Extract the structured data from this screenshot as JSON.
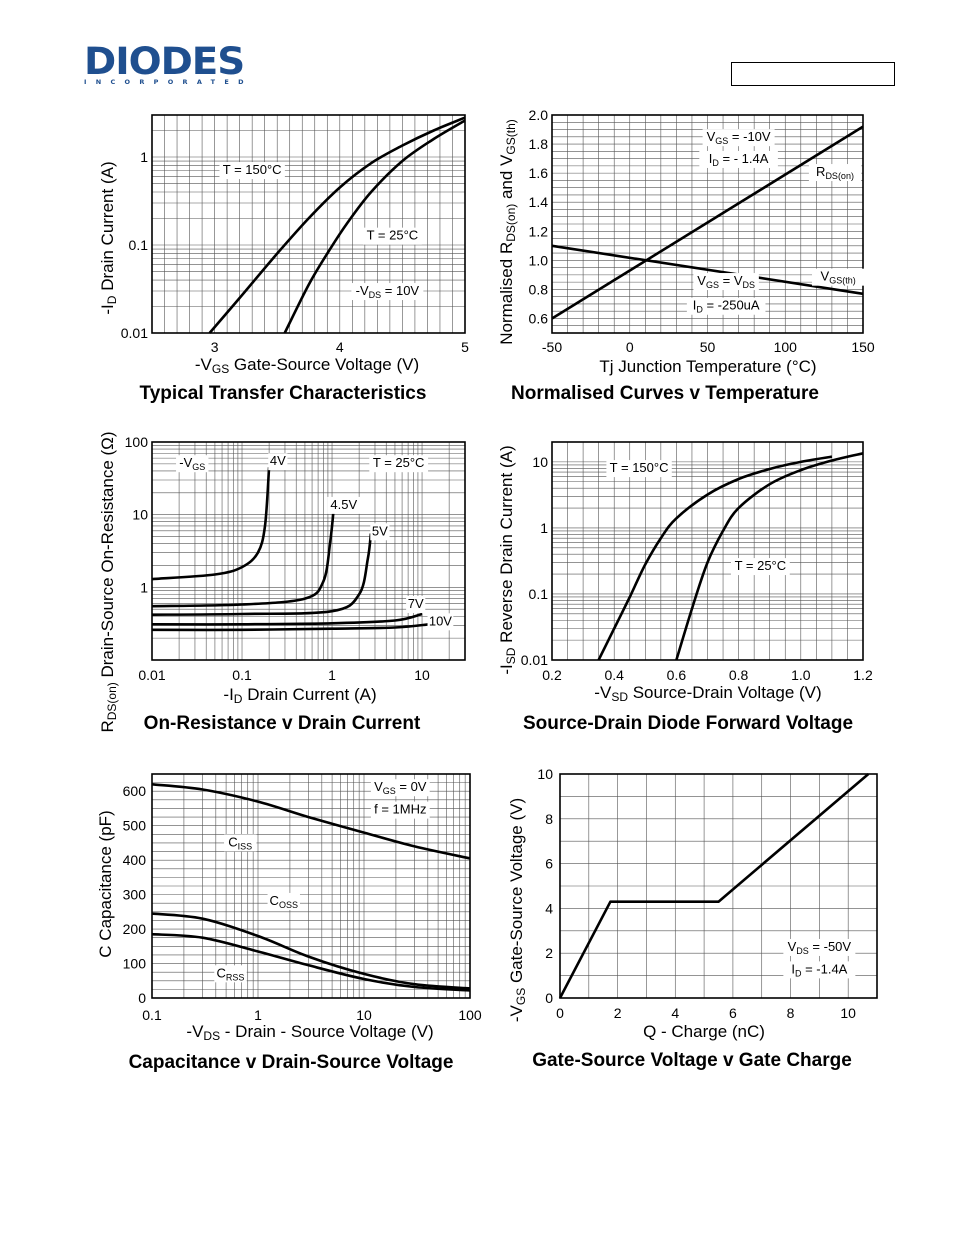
{
  "header": {
    "brand": "DIODES",
    "brand_sub": "INCORPORATED",
    "brand_color": "#1f4f8f"
  },
  "chart_data": [
    {
      "type": "line",
      "title": "Typical Transfer Characteristics",
      "xlabel": "-VGS Gate-Source Voltage (V)",
      "ylabel": "-ID Drain Current (A)",
      "xlim": [
        2.5,
        5
      ],
      "ylim": [
        0.01,
        3
      ],
      "yscale": "log",
      "xticks": [
        "3",
        "4",
        "5"
      ],
      "yticks": [
        "0.01",
        "0.1",
        "1"
      ],
      "series": [
        {
          "name": "T = 150°C",
          "points": [
            [
              2.96,
              0.01
            ],
            [
              3.2,
              0.025
            ],
            [
              3.5,
              0.08
            ],
            [
              3.75,
              0.2
            ],
            [
              4.0,
              0.45
            ],
            [
              4.25,
              0.85
            ],
            [
              4.5,
              1.35
            ],
            [
              4.75,
              2.0
            ],
            [
              5.0,
              2.8
            ]
          ]
        },
        {
          "name": "T = 25°C",
          "points": [
            [
              3.56,
              0.01
            ],
            [
              3.75,
              0.035
            ],
            [
              3.9,
              0.08
            ],
            [
              4.05,
              0.17
            ],
            [
              4.25,
              0.4
            ],
            [
              4.5,
              0.9
            ],
            [
              4.75,
              1.6
            ],
            [
              5.0,
              2.6
            ]
          ]
        }
      ],
      "annotations": [
        {
          "text": "T = 150°C",
          "at": [
            3.3,
            0.64
          ]
        },
        {
          "text": "T = 25°C",
          "at": [
            4.42,
            0.115
          ]
        },
        {
          "text": "-VDS = 10V",
          "at": [
            4.38,
            0.027
          ]
        }
      ]
    },
    {
      "type": "line",
      "title": "Normalised Curves v Temperature",
      "xlabel": "Tj Junction Temperature (°C)",
      "ylabel": "Normalised RDS(on) and VGS(th)",
      "xlim": [
        -50,
        150
      ],
      "ylim": [
        0.5,
        2.0
      ],
      "xticks": [
        "-50",
        "0",
        "50",
        "100",
        "150"
      ],
      "yticks": [
        "0.6",
        "0.8",
        "1.0",
        "1.2",
        "1.4",
        "1.6",
        "1.8",
        "2.0"
      ],
      "series": [
        {
          "name": "RDS(on)",
          "points": [
            [
              -50,
              0.6
            ],
            [
              150,
              1.92
            ]
          ]
        },
        {
          "name": "VGS(th)",
          "points": [
            [
              -50,
              1.1
            ],
            [
              150,
              0.77
            ]
          ]
        }
      ],
      "annotations": [
        {
          "text": "VGS = -10V",
          "at": [
            70,
            1.82
          ]
        },
        {
          "text": "ID = - 1.4A",
          "at": [
            70,
            1.67
          ]
        },
        {
          "text": "RDS(on)",
          "at": [
            132,
            1.58
          ]
        },
        {
          "text": "VGS(th)",
          "at": [
            134,
            0.86
          ]
        },
        {
          "text": "VGS = VDS",
          "at": [
            62,
            0.83
          ]
        },
        {
          "text": "ID = -250uA",
          "at": [
            62,
            0.66
          ]
        }
      ]
    },
    {
      "type": "line",
      "title": "On-Resistance v Drain Current",
      "xlabel": "-ID Drain Current (A)",
      "ylabel": "RDS(on) Drain-Source On-Resistance (Ω)",
      "xlim": [
        0.01,
        30
      ],
      "ylim": [
        0.1,
        100
      ],
      "xscale": "log",
      "yscale": "log",
      "xticks": [
        "0.01",
        "0.1",
        "1",
        "10"
      ],
      "yticks": [
        "1",
        "10",
        "100"
      ],
      "series": [
        {
          "name": "4V",
          "points": [
            [
              0.01,
              1.3
            ],
            [
              0.05,
              1.5
            ],
            [
              0.1,
              1.9
            ],
            [
              0.15,
              3
            ],
            [
              0.18,
              7
            ],
            [
              0.2,
              45
            ]
          ]
        },
        {
          "name": "4.5V",
          "points": [
            [
              0.01,
              0.55
            ],
            [
              0.1,
              0.58
            ],
            [
              0.5,
              0.7
            ],
            [
              0.8,
              1.2
            ],
            [
              0.95,
              4
            ],
            [
              1.05,
              13
            ]
          ]
        },
        {
          "name": "5V",
          "points": [
            [
              0.01,
              0.42
            ],
            [
              0.1,
              0.43
            ],
            [
              1,
              0.47
            ],
            [
              2.0,
              0.8
            ],
            [
              2.5,
              2.5
            ],
            [
              2.7,
              5.5
            ]
          ]
        },
        {
          "name": "7V",
          "points": [
            [
              0.01,
              0.31
            ],
            [
              0.1,
              0.31
            ],
            [
              1,
              0.32
            ],
            [
              5,
              0.35
            ],
            [
              10,
              0.43
            ]
          ]
        },
        {
          "name": "10V",
          "points": [
            [
              0.01,
              0.26
            ],
            [
              0.1,
              0.26
            ],
            [
              1,
              0.27
            ],
            [
              5,
              0.28
            ],
            [
              12,
              0.31
            ]
          ]
        }
      ],
      "annotations": [
        {
          "text": "-VGS",
          "at": [
            0.028,
            45
          ]
        },
        {
          "text": "T = 25°C",
          "at": [
            5.5,
            45
          ]
        },
        {
          "text": "4V",
          "at": [
            0.25,
            48
          ]
        },
        {
          "text": "4.5V",
          "at": [
            1.35,
            12
          ]
        },
        {
          "text": "5V",
          "at": [
            3.4,
            5.2
          ]
        },
        {
          "text": "7V",
          "at": [
            8.5,
            0.52
          ]
        },
        {
          "text": "10V",
          "at": [
            16,
            0.3
          ]
        }
      ]
    },
    {
      "type": "line",
      "title": "Source-Drain Diode Forward Voltage",
      "xlabel": "-VSD Source-Drain Voltage (V)",
      "ylabel": "-ISD Reverse Drain Current (A)",
      "xlim": [
        0.2,
        1.2
      ],
      "ylim": [
        0.01,
        20
      ],
      "yscale": "log",
      "xticks": [
        "0.2",
        "0.4",
        "0.6",
        "0.8",
        "1.0",
        "1.2"
      ],
      "yticks": [
        "0.01",
        "0.1",
        "1",
        "10"
      ],
      "series": [
        {
          "name": "T = 150°C",
          "points": [
            [
              0.35,
              0.01
            ],
            [
              0.4,
              0.03
            ],
            [
              0.45,
              0.09
            ],
            [
              0.5,
              0.28
            ],
            [
              0.55,
              0.7
            ],
            [
              0.6,
              1.4
            ],
            [
              0.7,
              3.2
            ],
            [
              0.8,
              5.5
            ],
            [
              0.9,
              7.8
            ],
            [
              1.0,
              10.0
            ],
            [
              1.1,
              12.0
            ]
          ]
        },
        {
          "name": "T = 25°C",
          "points": [
            [
              0.6,
              0.01
            ],
            [
              0.65,
              0.06
            ],
            [
              0.7,
              0.3
            ],
            [
              0.75,
              0.9
            ],
            [
              0.8,
              2.0
            ],
            [
              0.9,
              4.6
            ],
            [
              1.0,
              7.5
            ],
            [
              1.1,
              10.5
            ],
            [
              1.2,
              13.5
            ]
          ]
        }
      ],
      "annotations": [
        {
          "text": "T = 150°C",
          "at": [
            0.48,
            7
          ]
        },
        {
          "text": "T = 25°C",
          "at": [
            0.87,
            0.23
          ]
        }
      ]
    },
    {
      "type": "line",
      "title": "Capacitance v Drain-Source Voltage",
      "xlabel": "-VDS - Drain - Source Voltage (V)",
      "ylabel": "C Capacitance (pF)",
      "xlim": [
        0.1,
        100
      ],
      "ylim": [
        0,
        650
      ],
      "xscale": "log",
      "xticks": [
        "0.1",
        "1",
        "10",
        "100"
      ],
      "yticks": [
        "0",
        "100",
        "200",
        "300",
        "400",
        "500",
        "600"
      ],
      "series": [
        {
          "name": "CISS",
          "points": [
            [
              0.1,
              620
            ],
            [
              0.3,
              605
            ],
            [
              1,
              570
            ],
            [
              3,
              525
            ],
            [
              10,
              480
            ],
            [
              30,
              440
            ],
            [
              100,
              405
            ]
          ]
        },
        {
          "name": "COSS",
          "points": [
            [
              0.1,
              245
            ],
            [
              0.3,
              230
            ],
            [
              1,
              180
            ],
            [
              3,
              120
            ],
            [
              10,
              70
            ],
            [
              30,
              40
            ],
            [
              100,
              28
            ]
          ]
        },
        {
          "name": "CRSS",
          "points": [
            [
              0.1,
              185
            ],
            [
              0.3,
              175
            ],
            [
              1,
              135
            ],
            [
              3,
              95
            ],
            [
              10,
              55
            ],
            [
              30,
              32
            ],
            [
              100,
              22
            ]
          ]
        }
      ],
      "annotations": [
        {
          "text": "VGS = 0V",
          "at": [
            22,
            600
          ]
        },
        {
          "text": "f = 1MHz",
          "at": [
            22,
            535
          ]
        },
        {
          "text": "CISS",
          "at": [
            0.68,
            440
          ]
        },
        {
          "text": "COSS",
          "at": [
            1.75,
            270
          ]
        },
        {
          "text": "CRSS",
          "at": [
            0.55,
            60
          ]
        }
      ]
    },
    {
      "type": "line",
      "title": "Gate-Source Voltage v Gate Charge",
      "xlabel": "Q - Charge (nC)",
      "ylabel": "-VGS Gate-Source Voltage (V)",
      "xlim": [
        0,
        11
      ],
      "ylim": [
        0,
        10
      ],
      "xticks": [
        "0",
        "2",
        "4",
        "6",
        "8",
        "10"
      ],
      "yticks": [
        "0",
        "2",
        "4",
        "6",
        "8",
        "10"
      ],
      "series": [
        {
          "name": "VGS",
          "points": [
            [
              0,
              0
            ],
            [
              1.75,
              4.3
            ],
            [
              5.5,
              4.3
            ],
            [
              10.7,
              10
            ]
          ]
        }
      ],
      "annotations": [
        {
          "text": "VDS = -50V",
          "at": [
            9.0,
            2.1
          ]
        },
        {
          "text": "ID = -1.4A",
          "at": [
            9.0,
            1.1
          ]
        }
      ]
    }
  ]
}
